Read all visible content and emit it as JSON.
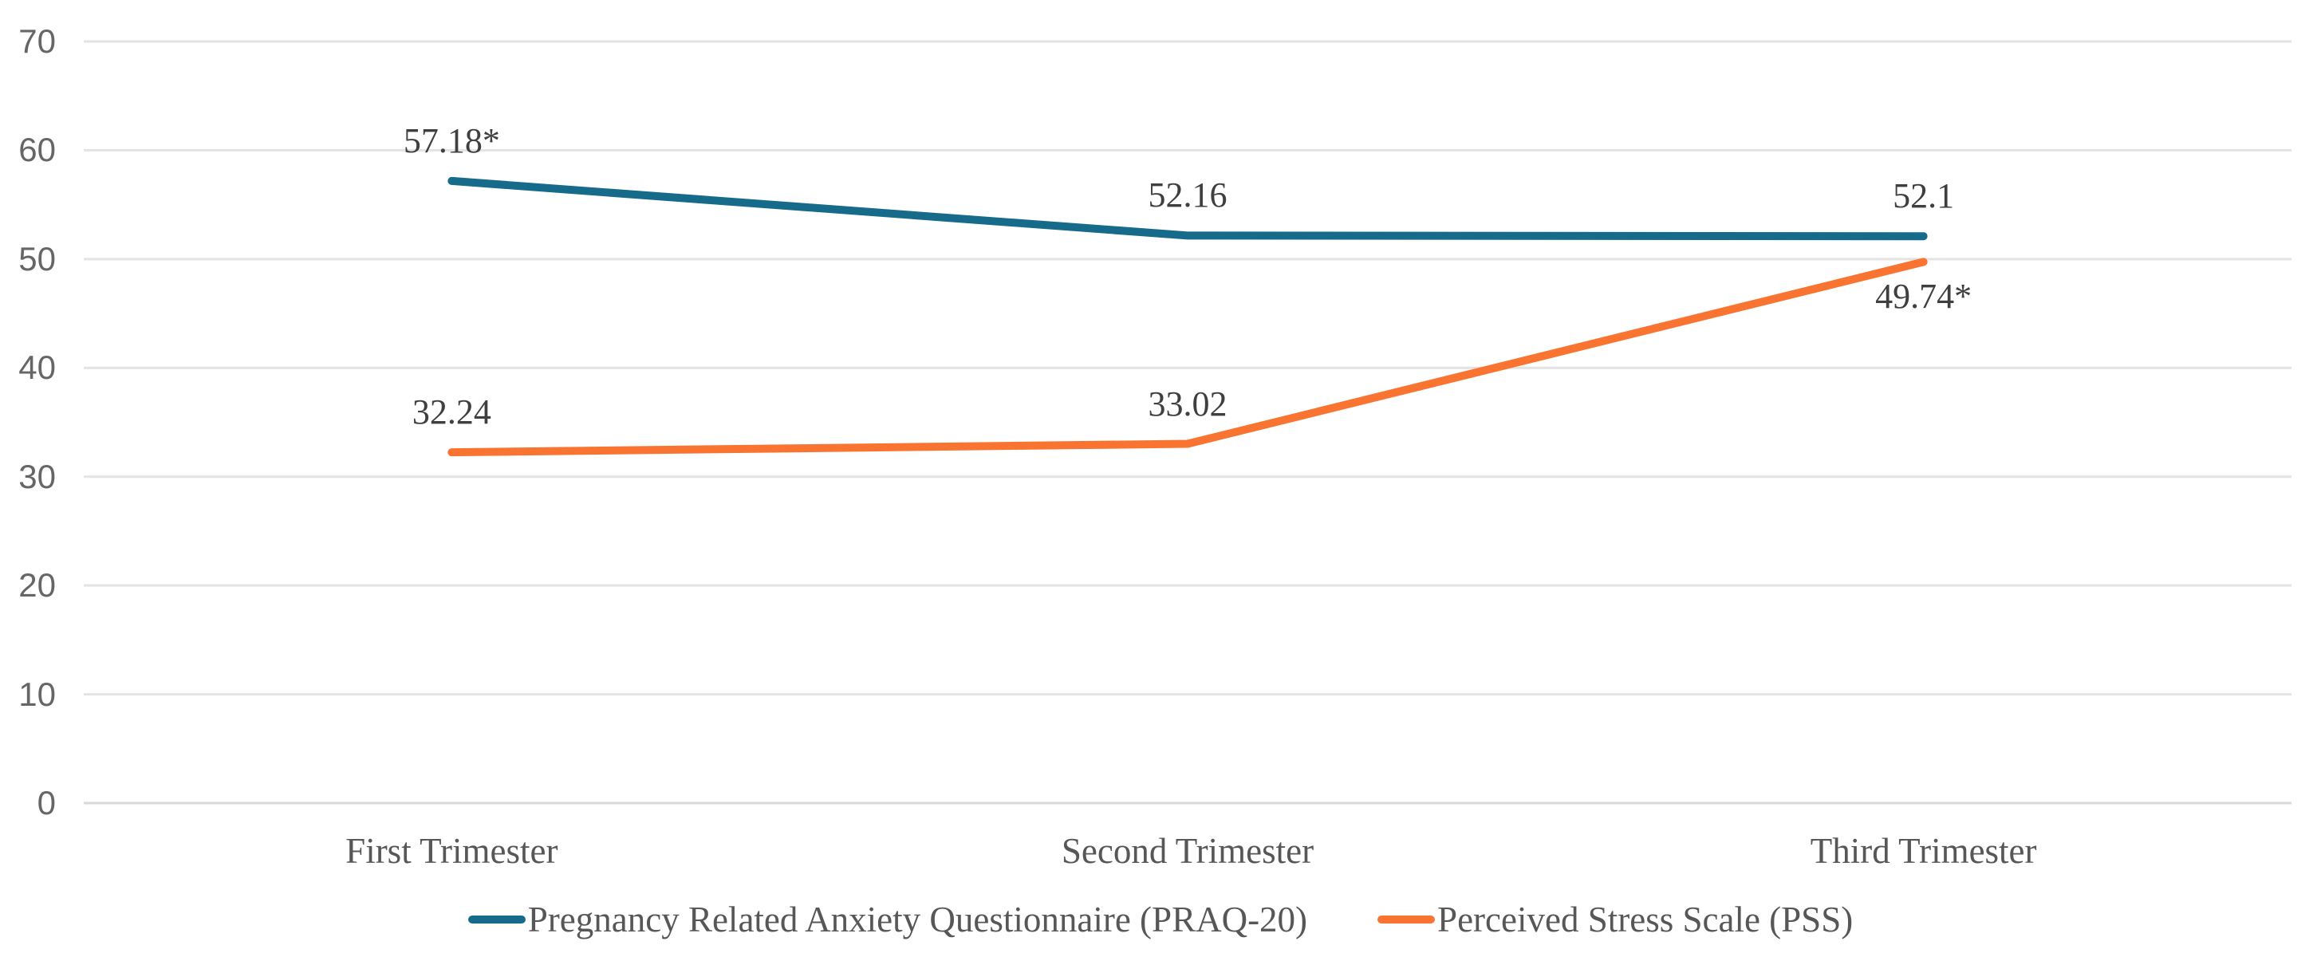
{
  "chart_data": {
    "type": "line",
    "title": "",
    "xlabel": "",
    "ylabel": "",
    "categories": [
      "First Trimester",
      "Second Trimester",
      "Third Trimester"
    ],
    "series": [
      {
        "name": "Pregnancy Related Anxiety Questionnaire (PRAQ-20)",
        "values": [
          57.18,
          52.16,
          52.1
        ],
        "labels": [
          "57.18*",
          "52.16",
          "52.1"
        ],
        "label_positions": [
          "above",
          "above",
          "above"
        ],
        "color": "#176b8a"
      },
      {
        "name": "Perceived Stress Scale (PSS)",
        "values": [
          32.24,
          33.02,
          49.74
        ],
        "labels": [
          "32.24",
          "33.02",
          "49.74*"
        ],
        "label_positions": [
          "above",
          "above",
          "below"
        ],
        "color": "#fa7431"
      }
    ],
    "ylim": [
      0,
      70
    ],
    "ytick_step": 10,
    "yticks": [
      "0",
      "10",
      "20",
      "30",
      "40",
      "50",
      "60",
      "70"
    ],
    "grid": true,
    "legend_position": "bottom"
  },
  "colors": {
    "background": "#ffffff",
    "gridline": "#e3e3e3",
    "axis_line": "#d8d8d8",
    "ytick_text": "#666666",
    "data_label_text": "#3f3f3f",
    "category_text": "#575757",
    "legend_text": "#575757"
  }
}
